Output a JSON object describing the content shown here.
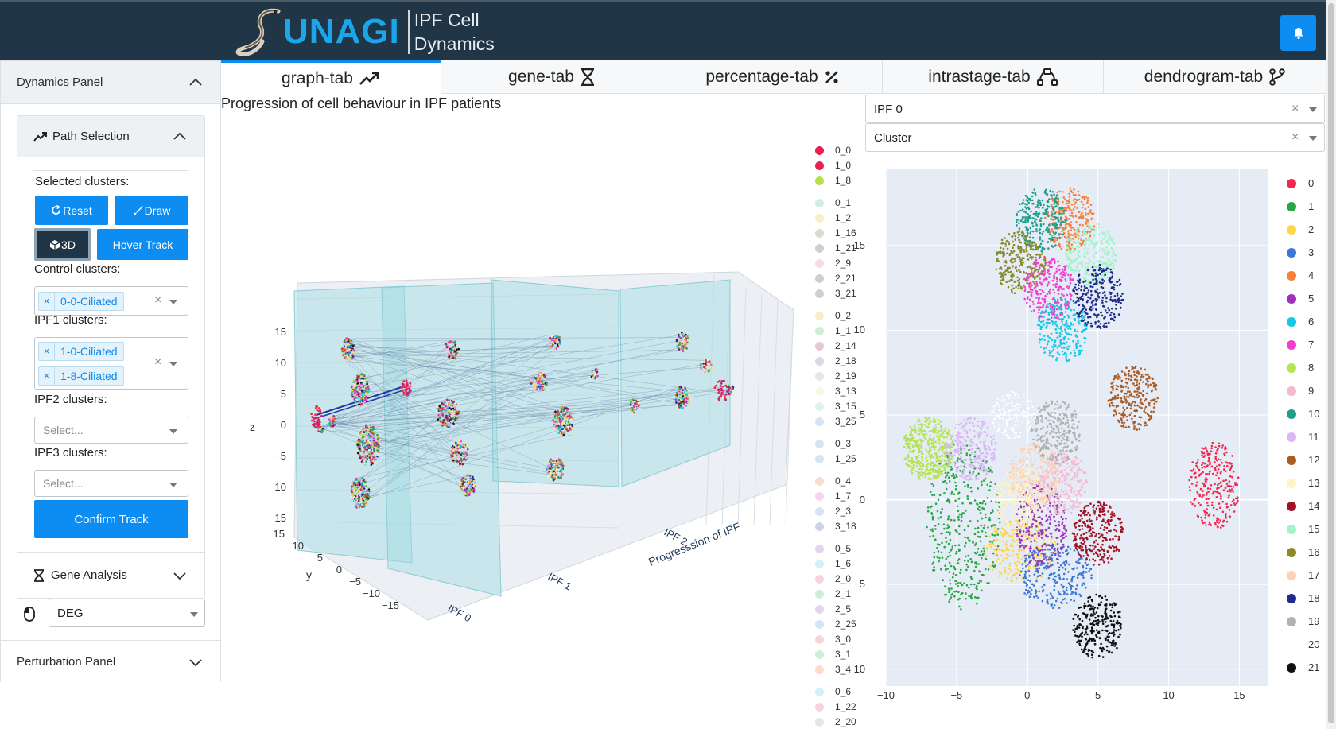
{
  "header": {
    "logo_text": "UNAGI",
    "subtitle_line1": "IPF Cell",
    "subtitle_line2": "Dynamics",
    "bell_icon": "bell-icon"
  },
  "sidebar": {
    "dynamics_panel": "Dynamics Panel",
    "path_selection": "Path Selection",
    "selected_clusters": "Selected clusters:",
    "reset_label": "Reset",
    "draw_label": "Draw",
    "three_d_label": "3D",
    "hover_track_label": "Hover Track",
    "control_clusters": "Control clusters:",
    "control_chips": [
      "0-0-Ciliated"
    ],
    "ipf1_clusters": "IPF1 clusters:",
    "ipf1_chips": [
      "1-0-Ciliated",
      "1-8-Ciliated"
    ],
    "ipf2_clusters": "IPF2 clusters:",
    "ipf2_placeholder": "Select...",
    "ipf3_clusters": "IPF3 clusters:",
    "ipf3_placeholder": "Select...",
    "confirm_track": "Confirm Track",
    "gene_analysis": "Gene Analysis",
    "deg_value": "DEG",
    "perturbation_panel": "Perturbation Panel"
  },
  "tabs": [
    {
      "label": "graph-tab",
      "active": true
    },
    {
      "label": "gene-tab",
      "active": false
    },
    {
      "label": "percentage-tab",
      "active": false
    },
    {
      "label": "intrastage-tab",
      "active": false
    },
    {
      "label": "dendrogram-tab",
      "active": false
    }
  ],
  "main": {
    "title": "Progression of cell behaviour in IPF patients",
    "stage_select": "IPF 0",
    "color_select": "Cluster"
  },
  "colors": {
    "header_bg": "#203545",
    "accent": "#0d8cf2",
    "logo_blue": "#1aa6e8"
  },
  "plot3d": {
    "axis_labels": {
      "x": "Progresssion of IPF",
      "y": "y",
      "z": "z"
    },
    "z_ticks": [
      "15",
      "10",
      "5",
      "0",
      "−5",
      "−10",
      "−15"
    ],
    "y_ticks": [
      "15",
      "10",
      "5",
      "0",
      "−5",
      "−10",
      "−15"
    ],
    "x_ticks": [
      "IPF 0",
      "IPF 1",
      "IPF 2"
    ],
    "legend": [
      {
        "label": "0_0",
        "color": "#e8214f"
      },
      {
        "label": "1_0",
        "color": "#e8214f"
      },
      {
        "label": "1_8",
        "color": "#b5e04a"
      },
      {
        "label": "0_1",
        "color": "#cfeee0"
      },
      {
        "label": "1_2",
        "color": "#f6efc9"
      },
      {
        "label": "1_16",
        "color": "#dadad0"
      },
      {
        "label": "1_21",
        "color": "#cfcfcf"
      },
      {
        "label": "2_9",
        "color": "#f7dbe3"
      },
      {
        "label": "2_21",
        "color": "#cfcfcf"
      },
      {
        "label": "3_21",
        "color": "#cfcfcf"
      },
      {
        "label": "0_2",
        "color": "#f6efc9"
      },
      {
        "label": "1_1",
        "color": "#cfeed8"
      },
      {
        "label": "2_14",
        "color": "#e8c9cf"
      },
      {
        "label": "2_18",
        "color": "#d5d9e8"
      },
      {
        "label": "2_19",
        "color": "#e6e6e6"
      },
      {
        "label": "3_13",
        "color": "#fbf7e0"
      },
      {
        "label": "3_15",
        "color": "#dff4e8"
      },
      {
        "label": "3_25",
        "color": "#d5e3f2"
      },
      {
        "label": "0_3",
        "color": "#d5e3f2"
      },
      {
        "label": "1_25",
        "color": "#d5e3f2"
      },
      {
        "label": "0_4",
        "color": "#fbdccc"
      },
      {
        "label": "1_7",
        "color": "#f9d3ee"
      },
      {
        "label": "2_3",
        "color": "#d5e3f2"
      },
      {
        "label": "3_18",
        "color": "#cfd2e6"
      },
      {
        "label": "0_5",
        "color": "#e6d3ef"
      },
      {
        "label": "1_6",
        "color": "#d0f2f6"
      },
      {
        "label": "2_0",
        "color": "#f9d3db"
      },
      {
        "label": "2_1",
        "color": "#cfeed8"
      },
      {
        "label": "2_5",
        "color": "#e6d3ef"
      },
      {
        "label": "2_25",
        "color": "#d5e3f2"
      },
      {
        "label": "3_0",
        "color": "#f9d3db"
      },
      {
        "label": "3_1",
        "color": "#cfeed8"
      },
      {
        "label": "3_4",
        "color": "#fbdccc"
      },
      {
        "label": "0_6",
        "color": "#d0f2f6"
      },
      {
        "label": "1_22",
        "color": "#f9d3db"
      },
      {
        "label": "2_20",
        "color": "#e6e6e6"
      }
    ]
  },
  "chart_data": {
    "type": "scatter",
    "title": "",
    "xlabel": "",
    "ylabel": "",
    "xlim": [
      -10,
      17
    ],
    "ylim": [
      -11,
      19.5
    ],
    "x_ticks": [
      "−10",
      "−5",
      "0",
      "5",
      "10",
      "15"
    ],
    "y_ticks": [
      "15",
      "10",
      "5",
      "0",
      "−5",
      "−10"
    ],
    "legend_position": "right",
    "series": [
      {
        "name": "0",
        "color": "#f2284e",
        "center": [
          13.2,
          0.8
        ]
      },
      {
        "name": "1",
        "color": "#27a745",
        "center": [
          -4.5,
          -1.5
        ]
      },
      {
        "name": "2",
        "color": "#ffd64a",
        "center": [
          -0.5,
          -3.0
        ]
      },
      {
        "name": "3",
        "color": "#3b78d8",
        "center": [
          2.0,
          -4.5
        ]
      },
      {
        "name": "4",
        "color": "#f77f3a",
        "center": [
          3.0,
          16.5
        ]
      },
      {
        "name": "5",
        "color": "#9b32b8",
        "center": [
          1.0,
          -1.5
        ]
      },
      {
        "name": "6",
        "color": "#16c8e8",
        "center": [
          2.5,
          10.0
        ]
      },
      {
        "name": "7",
        "color": "#f23fd0",
        "center": [
          1.5,
          12.5
        ]
      },
      {
        "name": "8",
        "color": "#b4e354",
        "center": [
          -7.0,
          3.0
        ]
      },
      {
        "name": "9",
        "color": "#f7b9d0",
        "center": [
          2.5,
          1.0
        ]
      },
      {
        "name": "10",
        "color": "#1f9e8c",
        "center": [
          1.0,
          16.5
        ]
      },
      {
        "name": "11",
        "color": "#d9b7f5",
        "center": [
          -4.0,
          3.0
        ]
      },
      {
        "name": "12",
        "color": "#a95c26",
        "center": [
          7.5,
          6.0
        ]
      },
      {
        "name": "13",
        "color": "#fff3c4",
        "center": [
          -0.5,
          0.0
        ]
      },
      {
        "name": "14",
        "color": "#a01226",
        "center": [
          5.0,
          -2.0
        ]
      },
      {
        "name": "15",
        "color": "#9ef5c8",
        "center": [
          4.5,
          14.5
        ]
      },
      {
        "name": "16",
        "color": "#8a8a2a",
        "center": [
          -0.5,
          14.0
        ]
      },
      {
        "name": "17",
        "color": "#fdd3b4",
        "center": [
          0.5,
          1.5
        ]
      },
      {
        "name": "18",
        "color": "#1f2a8c",
        "center": [
          5.0,
          12.0
        ]
      },
      {
        "name": "19",
        "color": "#b1b1b1",
        "center": [
          2.0,
          4.0
        ]
      },
      {
        "name": "20",
        "color": "#ffffff",
        "center": [
          -1.0,
          5.0
        ]
      },
      {
        "name": "21",
        "color": "#111111",
        "center": [
          5.0,
          -7.5
        ]
      }
    ]
  }
}
